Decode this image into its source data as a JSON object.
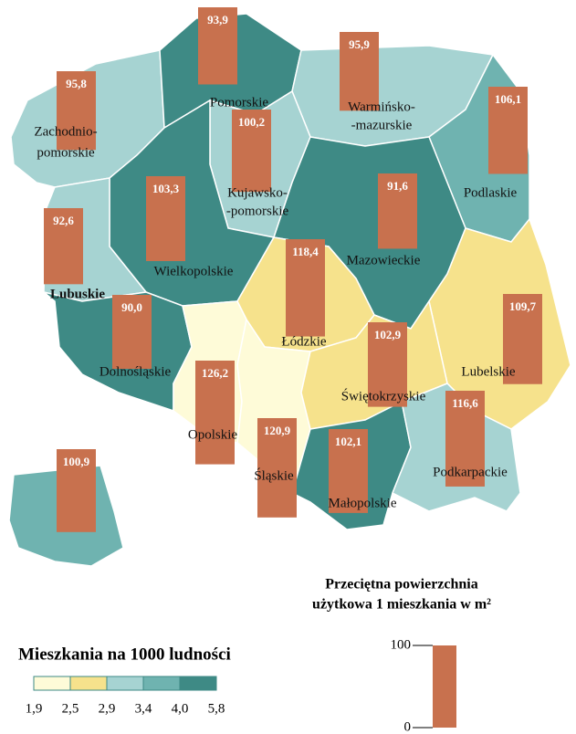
{
  "chart_data": {
    "type": "map",
    "regions": [
      {
        "name": [
          "Zachodnio-",
          "pomorskie"
        ],
        "value": 95.8,
        "value_label": "95,8",
        "color": "#a6d3d2"
      },
      {
        "name": [
          "Pomorskie"
        ],
        "value": 93.9,
        "value_label": "93,9",
        "color": "#3e8a85"
      },
      {
        "name": [
          "Warmińsko-",
          "-mazurskie"
        ],
        "value": 95.9,
        "value_label": "95,9",
        "color": "#a6d3d2"
      },
      {
        "name": [
          "Podlaskie"
        ],
        "value": 106.1,
        "value_label": "106,1",
        "color": "#6fb3b0"
      },
      {
        "name": [
          "Kujawsko-",
          "-pomorskie"
        ],
        "value": 100.2,
        "value_label": "100,2",
        "color": "#a6d3d2"
      },
      {
        "name": [
          "Mazowieckie"
        ],
        "value": 91.6,
        "value_label": "91,6",
        "color": "#3e8a85"
      },
      {
        "name": [
          "Wielkopolskie"
        ],
        "value": 103.3,
        "value_label": "103,3",
        "color": "#3e8a85"
      },
      {
        "name": [
          "Lubuskie"
        ],
        "value": 92.6,
        "value_label": "92,6",
        "color": "#a6d3d2"
      },
      {
        "name": [
          "Łódzkie"
        ],
        "value": 118.4,
        "value_label": "118,4",
        "color": "#f6e28c"
      },
      {
        "name": [
          "Lubelskie"
        ],
        "value": 109.7,
        "value_label": "109,7",
        "color": "#f6e28c"
      },
      {
        "name": [
          "Dolnośląskie"
        ],
        "value": 90.0,
        "value_label": "90,0",
        "color": "#3e8a85"
      },
      {
        "name": [
          "Opolskie"
        ],
        "value": 126.2,
        "value_label": "126,2",
        "color": "#fefbd8"
      },
      {
        "name": [
          "Śląskie"
        ],
        "value": 120.9,
        "value_label": "120,9",
        "color": "#fefbd8"
      },
      {
        "name": [
          "Świętokrzyskie"
        ],
        "value": 102.9,
        "value_label": "102,9",
        "color": "#f6e28c"
      },
      {
        "name": [
          "Małopolskie"
        ],
        "value": 102.1,
        "value_label": "102,1",
        "color": "#3e8a85"
      },
      {
        "name": [
          "Podkarpackie"
        ],
        "value": 116.6,
        "value_label": "116,6",
        "color": "#a6d3d2"
      },
      {
        "name": [],
        "value": 100.9,
        "value_label": "100,9",
        "color": "#6fb3b0"
      }
    ],
    "bar_color": "#c8714e",
    "color_legend": {
      "title": "Mieszkania na 1000 ludności",
      "colors": [
        "#fefbd8",
        "#f6e28c",
        "#a6d3d2",
        "#6fb3b0",
        "#3e8a85"
      ],
      "ticks": [
        {
          "value": 1.9,
          "label": "1,9"
        },
        {
          "value": 2.5,
          "label": "2,5"
        },
        {
          "value": 2.9,
          "label": "2,9"
        },
        {
          "value": 3.4,
          "label": "3,4"
        },
        {
          "value": 4.0,
          "label": "4,0"
        },
        {
          "value": 5.8,
          "label": "5,8"
        }
      ]
    },
    "bar_legend": {
      "title": [
        "Przeciętna powierzchnia",
        "użytkowa 1 mieszkania w m²"
      ],
      "ticks": [
        0,
        100
      ]
    }
  }
}
